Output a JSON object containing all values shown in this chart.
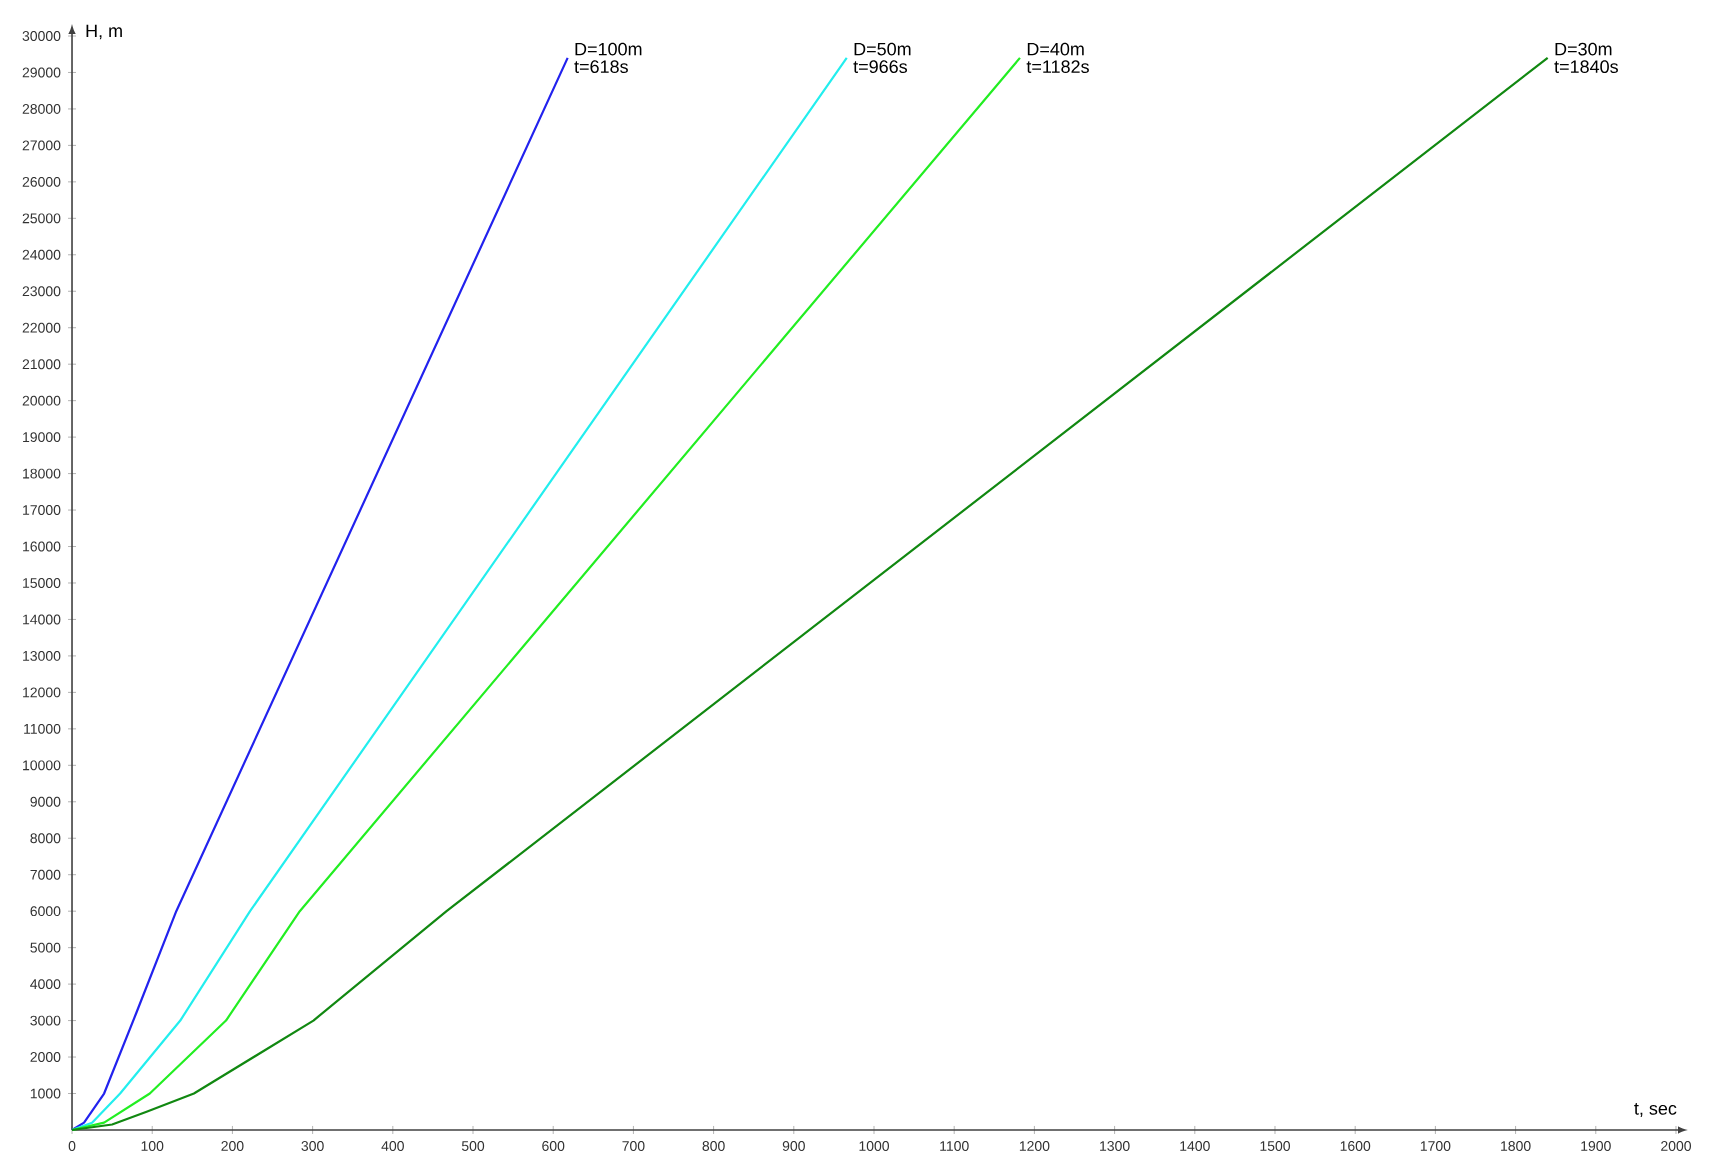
{
  "chart_data": {
    "type": "line",
    "xlabel": "t, sec",
    "ylabel": "H, m",
    "xlim": [
      0,
      2000
    ],
    "ylim": [
      0,
      30000
    ],
    "xticks": [
      0,
      100,
      200,
      300,
      400,
      500,
      600,
      700,
      800,
      900,
      1000,
      1100,
      1200,
      1300,
      1400,
      1500,
      1600,
      1700,
      1800,
      1900,
      2000
    ],
    "yticks": [
      1000,
      2000,
      3000,
      4000,
      5000,
      6000,
      7000,
      8000,
      9000,
      10000,
      11000,
      12000,
      13000,
      14000,
      15000,
      16000,
      17000,
      18000,
      19000,
      20000,
      21000,
      22000,
      23000,
      24000,
      25000,
      26000,
      27000,
      28000,
      29000,
      30000
    ],
    "series": [
      {
        "name": "D=100m",
        "color": "#2222ee",
        "x": [
          0,
          15,
          40,
          80,
          130,
          618
        ],
        "values": [
          0,
          200,
          1000,
          3200,
          6000,
          29400
        ]
      },
      {
        "name": "D=50m",
        "color": "#22eeee",
        "x": [
          0,
          25,
          60,
          135,
          222,
          966
        ],
        "values": [
          0,
          200,
          1000,
          3000,
          6000,
          29400
        ]
      },
      {
        "name": "D=40m",
        "color": "#22ee22",
        "x": [
          0,
          40,
          97,
          192,
          284,
          1182
        ],
        "values": [
          0,
          200,
          1000,
          3000,
          6000,
          29400
        ]
      },
      {
        "name": "D=30m",
        "color": "#118811",
        "x": [
          0,
          50,
          93,
          152,
          301,
          467,
          1840
        ],
        "values": [
          0,
          150,
          500,
          1000,
          3000,
          6000,
          29400
        ]
      }
    ],
    "annotations": [
      {
        "text": "t=618s",
        "x": 618,
        "y": 29400
      },
      {
        "text": "t=966s",
        "x": 966,
        "y": 29400
      },
      {
        "text": "t=1182s",
        "x": 1182,
        "y": 29400
      },
      {
        "text": "t=1840s",
        "x": 1840,
        "y": 29400
      }
    ]
  }
}
